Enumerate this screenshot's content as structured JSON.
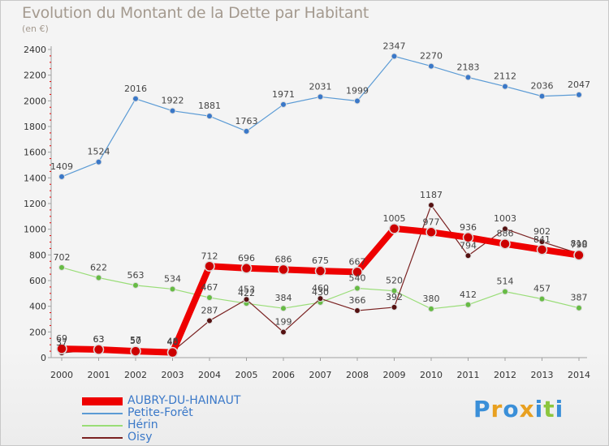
{
  "chart_data": {
    "type": "line",
    "title": "Evolution du Montant de la Dette par Habitant",
    "subtitle": "(en €)",
    "x": [
      "2000",
      "2001",
      "2002",
      "2003",
      "2004",
      "2005",
      "2006",
      "2007",
      "2008",
      "2009",
      "2010",
      "2011",
      "2012",
      "2013",
      "2014"
    ],
    "ylim": [
      0,
      2400
    ],
    "yticks": [
      0,
      200,
      400,
      600,
      800,
      1000,
      1200,
      1400,
      1600,
      1800,
      2000,
      2200,
      2400
    ],
    "grid": false,
    "legend_position": "bottom-left",
    "series": [
      {
        "name": "AUBRY-DU-HAINAUT",
        "color": "#ee0000",
        "values": [
          69,
          63,
          50,
          40,
          712,
          696,
          686,
          675,
          667,
          1005,
          977,
          936,
          886,
          841,
          798
        ],
        "labels": [
          "69",
          "63",
          "50",
          "40",
          "712",
          "696",
          "686",
          "675",
          "667",
          "1005",
          "977",
          "936",
          "886",
          "841",
          "798"
        ]
      },
      {
        "name": "Petite-Forêt",
        "color": "#5b9bd5",
        "values": [
          1409,
          1524,
          2016,
          1922,
          1881,
          1763,
          1971,
          2031,
          1999,
          2347,
          2270,
          2183,
          2112,
          2036,
          2047
        ],
        "labels": [
          "1409",
          "1524",
          "2016",
          "1922",
          "1881",
          "1763",
          "1971",
          "2031",
          "1999",
          "2347",
          "2270",
          "2183",
          "2112",
          "2036",
          "2047"
        ]
      },
      {
        "name": "Hérin",
        "color": "#99dd77",
        "values": [
          702,
          622,
          563,
          534,
          467,
          422,
          384,
          430,
          540,
          520,
          380,
          412,
          514,
          457,
          387
        ],
        "labels": [
          "702",
          "622",
          "563",
          "534",
          "467",
          "422",
          "384",
          "430",
          "540",
          "520",
          "380",
          "412",
          "514",
          "457",
          "387"
        ]
      },
      {
        "name": "Oisy",
        "color": "#7a2222",
        "values": [
          37,
          63,
          57,
          48,
          287,
          453,
          199,
          460,
          366,
          392,
          1187,
          794,
          1003,
          902,
          810
        ],
        "labels": [
          "37",
          "63",
          "57",
          "48",
          "287",
          "453",
          "199",
          "460",
          "366",
          "392",
          "1187",
          "794",
          "1003",
          "902",
          "810"
        ]
      }
    ]
  },
  "logo": {
    "text": "Proxiti",
    "letter_colors": [
      "#3a8fd8",
      "#e8a020",
      "#3a8fd8",
      "#e8a020",
      "#3a8fd8",
      "#8cc63e",
      "#3a8fd8"
    ]
  }
}
